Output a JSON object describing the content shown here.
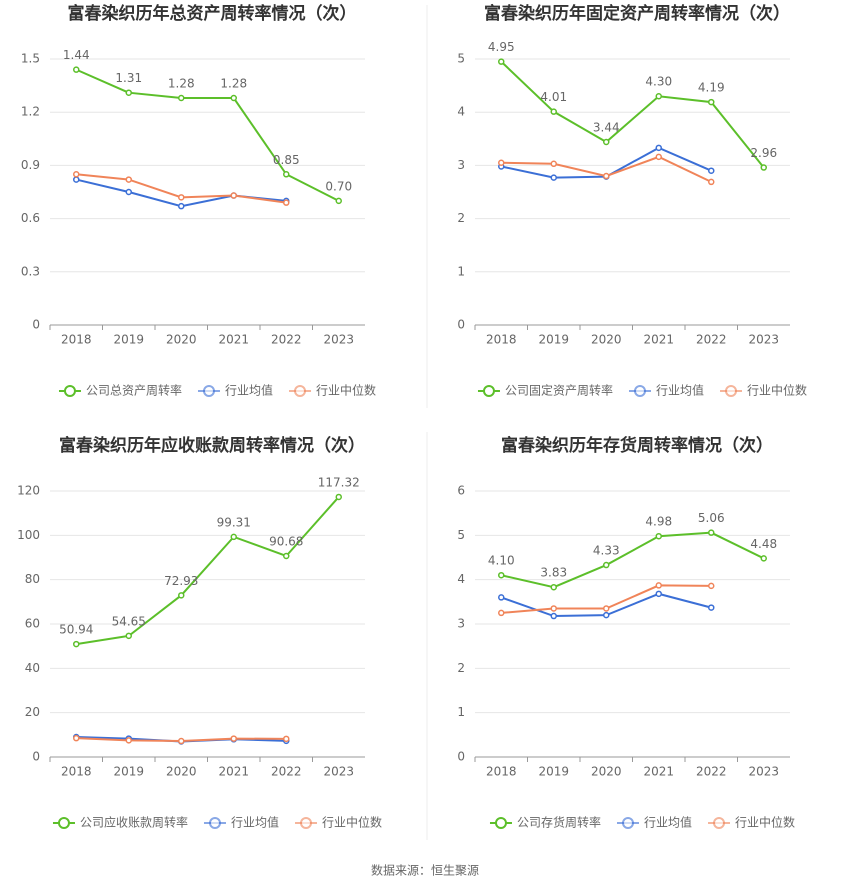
{
  "chart_data": [
    {
      "type": "line",
      "title": "富春染织历年总资产周转率情况（次）",
      "categories": [
        "2018",
        "2019",
        "2020",
        "2021",
        "2022",
        "2023"
      ],
      "ylim": [
        0,
        1.5
      ],
      "yticks": [
        0,
        0.3,
        0.6,
        0.9,
        1.2,
        1.5
      ],
      "grid": true,
      "series": [
        {
          "name": "公司总资产周转率",
          "color": "#5cbf2a",
          "values": [
            1.44,
            1.31,
            1.28,
            1.28,
            0.85,
            0.7
          ],
          "value_labels": [
            "1.44",
            "1.31",
            "1.28",
            "1.28",
            "0.85",
            "0.70"
          ]
        },
        {
          "name": "行业均值",
          "color": "#3b6fd6",
          "values": [
            0.82,
            0.75,
            0.67,
            0.73,
            0.7,
            null
          ]
        },
        {
          "name": "行业中位数",
          "color": "#f08459",
          "values": [
            0.85,
            0.82,
            0.72,
            0.73,
            0.69,
            null
          ]
        }
      ]
    },
    {
      "type": "line",
      "title": "富春染织历年固定资产周转率情况（次）",
      "categories": [
        "2018",
        "2019",
        "2020",
        "2021",
        "2022",
        "2023"
      ],
      "ylim": [
        0,
        5
      ],
      "yticks": [
        0,
        1,
        2,
        3,
        4,
        5
      ],
      "grid": true,
      "series": [
        {
          "name": "公司固定资产周转率",
          "color": "#5cbf2a",
          "values": [
            4.95,
            4.01,
            3.44,
            4.3,
            4.19,
            2.96
          ],
          "value_labels": [
            "4.95",
            "4.01",
            "3.44",
            "4.30",
            "4.19",
            "2.96"
          ]
        },
        {
          "name": "行业均值",
          "color": "#3b6fd6",
          "values": [
            2.98,
            2.77,
            2.79,
            3.33,
            2.9,
            null
          ]
        },
        {
          "name": "行业中位数",
          "color": "#f08459",
          "values": [
            3.05,
            3.03,
            2.8,
            3.16,
            2.69,
            null
          ]
        }
      ]
    },
    {
      "type": "line",
      "title": "富春染织历年应收账款周转率情况（次）",
      "categories": [
        "2018",
        "2019",
        "2020",
        "2021",
        "2022",
        "2023"
      ],
      "ylim": [
        0,
        120
      ],
      "yticks": [
        0,
        20,
        40,
        60,
        80,
        100,
        120
      ],
      "grid": true,
      "series": [
        {
          "name": "公司应收账款周转率",
          "color": "#5cbf2a",
          "values": [
            50.94,
            54.65,
            72.93,
            99.31,
            90.68,
            117.32
          ]
        },
        {
          "name": "行业均值",
          "color": "#3b6fd6",
          "values": [
            9.0,
            8.3,
            7.0,
            8.0,
            7.3,
            null
          ]
        },
        {
          "name": "行业中位数",
          "color": "#f08459",
          "values": [
            8.5,
            7.5,
            7.2,
            8.3,
            8.2,
            null
          ]
        }
      ]
    },
    {
      "type": "line",
      "title": "富春染织历年存货周转率情况（次）",
      "categories": [
        "2018",
        "2019",
        "2020",
        "2021",
        "2022",
        "2023"
      ],
      "ylim": [
        0,
        6
      ],
      "yticks": [
        0,
        1,
        2,
        3,
        4,
        5,
        6
      ],
      "grid": true,
      "series": [
        {
          "name": "公司存货周转率",
          "color": "#5cbf2a",
          "values": [
            4.1,
            3.83,
            4.33,
            4.98,
            5.06,
            4.48
          ],
          "value_labels": [
            "4.10",
            "3.83",
            "4.33",
            "4.98",
            "5.06",
            "4.48"
          ]
        },
        {
          "name": "行业均值",
          "color": "#3b6fd6",
          "values": [
            3.6,
            3.18,
            3.2,
            3.68,
            3.37,
            null
          ]
        },
        {
          "name": "行业中位数",
          "color": "#f08459",
          "values": [
            3.25,
            3.35,
            3.35,
            3.87,
            3.86,
            null
          ]
        }
      ]
    }
  ],
  "source": "数据来源：恒生聚源"
}
